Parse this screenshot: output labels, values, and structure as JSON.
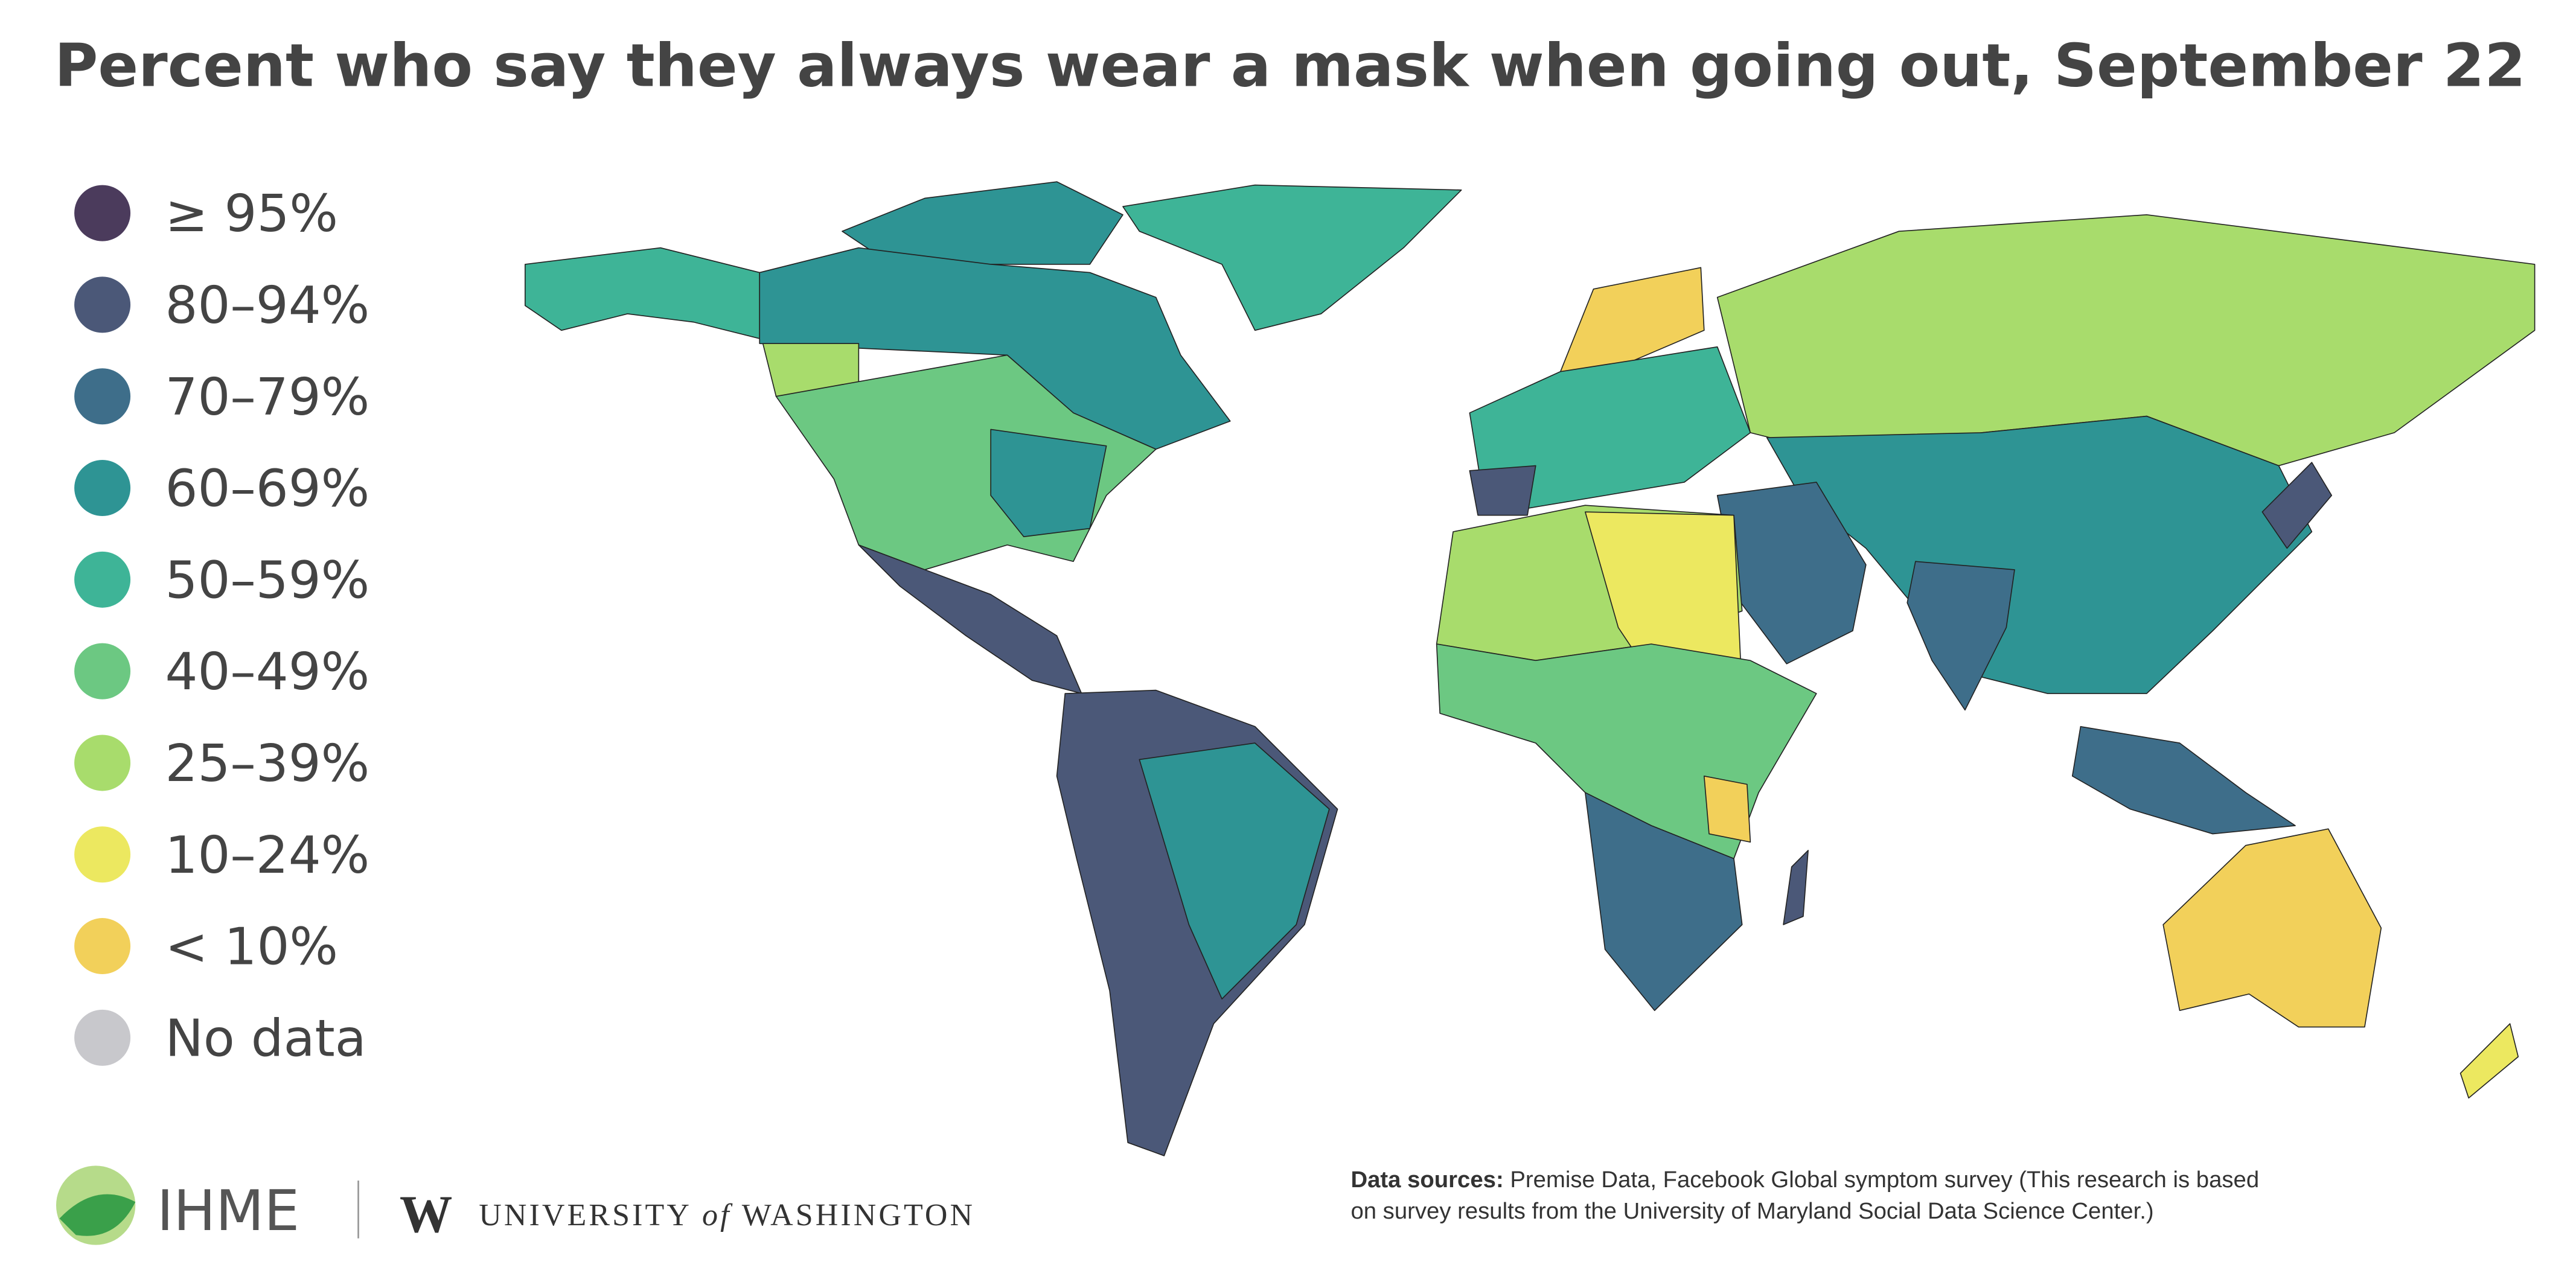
{
  "header": {
    "title": "Percent who say they always wear a mask when going out, September 22"
  },
  "legend": {
    "items": [
      {
        "label": "≥ 95%",
        "color": "#4b3b5c"
      },
      {
        "label": "80–94%",
        "color": "#4b5878"
      },
      {
        "label": "70–79%",
        "color": "#3e6e8a"
      },
      {
        "label": "60–69%",
        "color": "#2e9494"
      },
      {
        "label": "50–59%",
        "color": "#3eb497"
      },
      {
        "label": "40–49%",
        "color": "#6cc882"
      },
      {
        "label": "25–39%",
        "color": "#a8dc6c"
      },
      {
        "label": "10–24%",
        "color": "#ece860"
      },
      {
        "label": "< 10%",
        "color": "#f2d05a"
      },
      {
        "label": "No data",
        "color": "#c8c8cc"
      }
    ]
  },
  "logos": {
    "ihme": "IHME",
    "uw_mark": "W",
    "uw_prefix": "UNIVERSITY",
    "uw_of": "of",
    "uw_suffix": "WASHINGTON"
  },
  "footer": {
    "sources_label": "Data sources:",
    "sources_text": "Premise Data, Facebook Global symptom survey (This research is based on survey results from the University of Maryland Social Data Science Center.)"
  }
}
